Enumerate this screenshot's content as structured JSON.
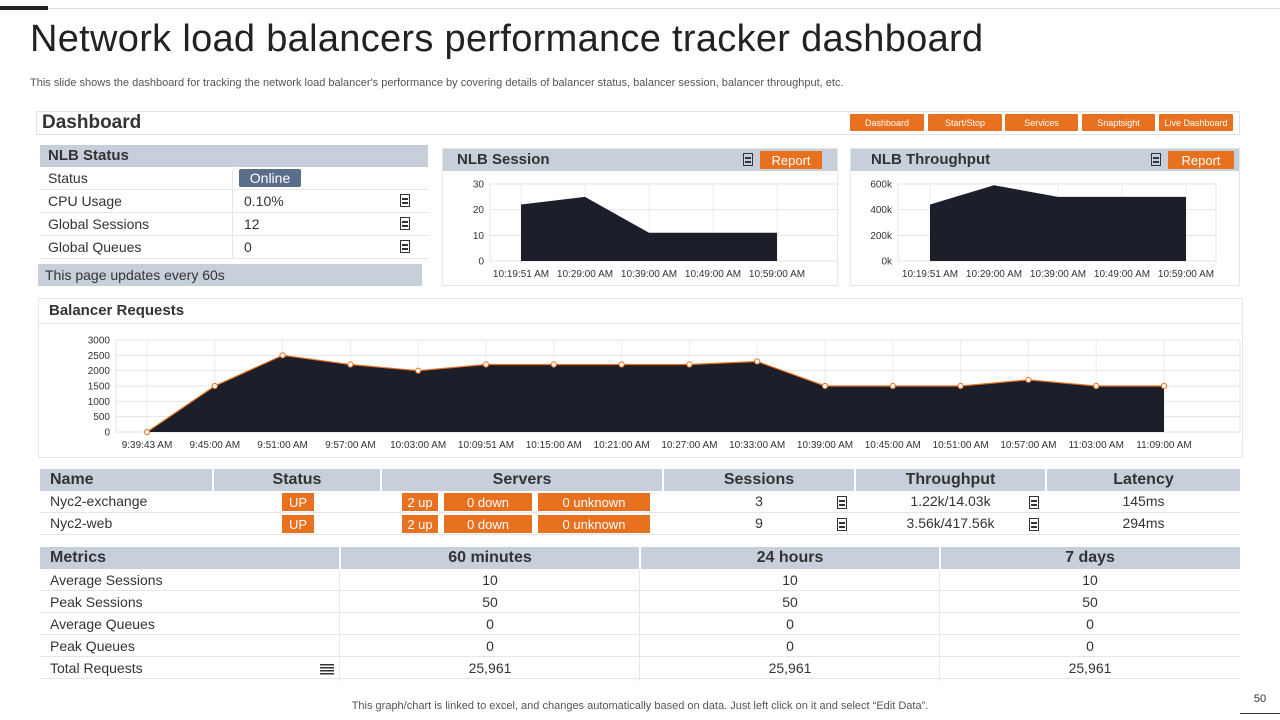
{
  "slide": {
    "title": "Network load balancers performance tracker dashboard",
    "subtitle": "This slide shows the dashboard for tracking the network load balancer's performance by covering details of balancer status, balancer session, balancer throughput, etc.",
    "footer": "This graph/chart is linked to excel,  and changes automatically based on data. Just left click on it and select “Edit Data”.",
    "page_number": "50"
  },
  "dashboard": {
    "title": "Dashboard",
    "nav": [
      "Dashboard",
      "Start/Stop",
      "Services",
      "Snaptsight",
      "Live Dashboard"
    ]
  },
  "nlb_status": {
    "title": "NLB Status",
    "rows": [
      {
        "label": "Status",
        "value": "Online"
      },
      {
        "label": "CPU Usage",
        "value": "0.10%"
      },
      {
        "label": "Global Sessions",
        "value": "12"
      },
      {
        "label": "Global Queues",
        "value": "0"
      }
    ],
    "update_note": "This page updates every 60s"
  },
  "nlb_session": {
    "title": "NLB Session",
    "report_label": "Report"
  },
  "nlb_throughput": {
    "title": "NLB Throughput",
    "report_label": "Report"
  },
  "balancer_requests": {
    "title": "Balancer Requests"
  },
  "colors": {
    "accent": "#e8711f",
    "header_bg": "#c7cfdb",
    "area_fill": "#1c1f2a",
    "badge": "#5a6d8a"
  },
  "chart_data": [
    {
      "id": "nlb-session",
      "type": "area",
      "x": [
        "10:19:51 AM",
        "10:29:00 AM",
        "10:39:00 AM",
        "10:49:00 AM",
        "10:59:00 AM"
      ],
      "values": [
        22,
        25,
        11,
        11,
        11
      ],
      "yticks": [
        "0",
        "10",
        "20",
        "30"
      ],
      "ylim": [
        0,
        30
      ],
      "grid": true
    },
    {
      "id": "nlb-throughput",
      "type": "area",
      "x": [
        "10:19:51 AM",
        "10:29:00 AM",
        "10:39:00 AM",
        "10:49:00 AM",
        "10:59:00 AM"
      ],
      "values": [
        440000,
        590000,
        500000,
        500000,
        500000
      ],
      "yticks": [
        "0k",
        "200k",
        "400k",
        "600k"
      ],
      "ylim": [
        0,
        600000
      ],
      "grid": true
    },
    {
      "id": "balancer-requests",
      "type": "area",
      "x": [
        "9:39:43 AM",
        "9:45:00 AM",
        "9:51:00 AM",
        "9:57:00 AM",
        "10:03:00 AM",
        "10:09:51 AM",
        "10:15:00 AM",
        "10:21:00 AM",
        "10:27:00 AM",
        "10:33:00 AM",
        "10:39:00 AM",
        "10:45:00 AM",
        "10:51:00 AM",
        "10:57:00 AM",
        "11:03:00 AM",
        "11:09:00 AM"
      ],
      "values": [
        0,
        1500,
        2500,
        2200,
        2000,
        2200,
        2200,
        2200,
        2200,
        2300,
        1500,
        1500,
        1500,
        1700,
        1500,
        1500
      ],
      "yticks": [
        "0",
        "500",
        "1000",
        "1500",
        "2000",
        "2500",
        "3000"
      ],
      "ylim": [
        0,
        3000
      ],
      "grid": true,
      "markers": true
    }
  ],
  "servers_table": {
    "headers": [
      "Name",
      "Status",
      "Servers",
      "Sessions",
      "Throughput",
      "Latency"
    ],
    "rows": [
      {
        "name": "Nyc2-exchange",
        "status": "UP",
        "up": "2 up",
        "down": "0 down",
        "unknown": "0 unknown",
        "sessions": "3",
        "throughput": "1.22k/14.03k",
        "latency": "145ms"
      },
      {
        "name": "Nyc2-web",
        "status": "UP",
        "up": "2 up",
        "down": "0 down",
        "unknown": "0 unknown",
        "sessions": "9",
        "throughput": "3.56k/417.56k",
        "latency": "294ms"
      }
    ]
  },
  "metrics_table": {
    "headers": [
      "Metrics",
      "60 minutes",
      "24 hours",
      "7 days"
    ],
    "rows": [
      {
        "label": "Average Sessions",
        "v": [
          "10",
          "10",
          "10"
        ]
      },
      {
        "label": "Peak Sessions",
        "v": [
          "50",
          "50",
          "50"
        ]
      },
      {
        "label": "Average Queues",
        "v": [
          "0",
          "0",
          "0"
        ]
      },
      {
        "label": "Peak Queues",
        "v": [
          "0",
          "0",
          "0"
        ]
      },
      {
        "label": "Total Requests",
        "v": [
          "25,961",
          "25,961",
          "25,961"
        ]
      }
    ]
  }
}
